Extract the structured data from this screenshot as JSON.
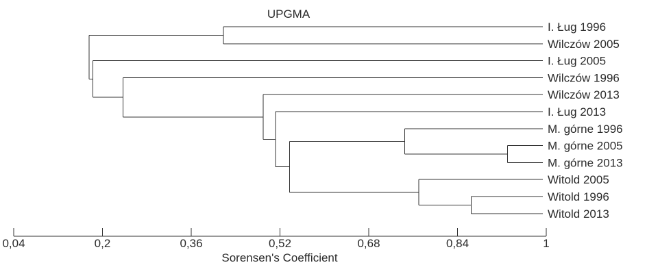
{
  "chart_data": {
    "type": "dendrogram",
    "title": "UPGMA",
    "xlabel": "Sorensen's Coefficient",
    "xlim": [
      0.04,
      1
    ],
    "ticks": [
      "0,04",
      "0,2",
      "0,36",
      "0,52",
      "0,68",
      "0,84",
      "1"
    ],
    "tick_values": [
      0.04,
      0.2,
      0.36,
      0.52,
      0.68,
      0.84,
      1
    ],
    "leaves": [
      "I. Ług 1996",
      "Wilczów 2005",
      "I. Ług 2005",
      "Wilczów 1996",
      "Wilczów 2013",
      "I. Ług 2013",
      "M. górne 1996",
      "M. górne 2005",
      "M. górne 2013",
      "Witold 2005",
      "Witold 1996",
      "Witold 2013"
    ],
    "merges": [
      {
        "id": "n1",
        "children": [
          "leaf:7",
          "leaf:8"
        ],
        "height": 0.93
      },
      {
        "id": "n2",
        "children": [
          "leaf:10",
          "leaf:11"
        ],
        "height": 0.865
      },
      {
        "id": "n3",
        "children": [
          "leaf:6",
          "n1"
        ],
        "height": 0.745
      },
      {
        "id": "n4",
        "children": [
          "leaf:9",
          "n2"
        ],
        "height": 0.77
      },
      {
        "id": "n5",
        "children": [
          "n3",
          "n4"
        ],
        "height": 0.537
      },
      {
        "id": "n6",
        "children": [
          "leaf:5",
          "n5"
        ],
        "height": 0.512
      },
      {
        "id": "n7",
        "children": [
          "leaf:4",
          "n6"
        ],
        "height": 0.49
      },
      {
        "id": "n8",
        "children": [
          "leaf:3",
          "n7"
        ],
        "height": 0.237
      },
      {
        "id": "n9",
        "children": [
          "leaf:2",
          "n8"
        ],
        "height": 0.183
      },
      {
        "id": "n10",
        "children": [
          "leaf:0",
          "leaf:1"
        ],
        "height": 0.418
      },
      {
        "id": "n11",
        "children": [
          "n10",
          "n9"
        ],
        "height": 0.176
      }
    ]
  }
}
